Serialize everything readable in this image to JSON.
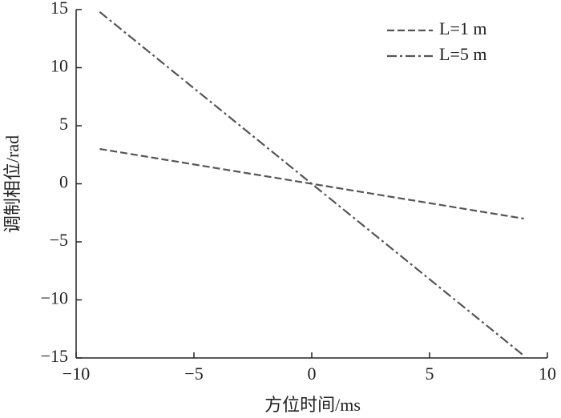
{
  "chart_data": {
    "type": "line",
    "xlabel": "方位时间/ms",
    "ylabel": "调制相位/rad",
    "x": [
      -9,
      0,
      9
    ],
    "series": [
      {
        "name": "L=1 m",
        "color": "#555555",
        "dash": "dashed",
        "values": [
          3,
          0,
          -3
        ]
      },
      {
        "name": "L=5 m",
        "color": "#555555",
        "dash": "dashdot",
        "values": [
          14.8,
          0,
          -14.8
        ]
      }
    ],
    "xlim": [
      -10,
      10
    ],
    "xticks": [
      {
        "value": -10,
        "label": "−10"
      },
      {
        "value": -5,
        "label": "−5"
      },
      0,
      5,
      10
    ],
    "ylim": [
      -15,
      15
    ],
    "yticks": [
      {
        "value": -15,
        "label": "−15"
      },
      {
        "value": -10,
        "label": "−10"
      },
      {
        "value": -5,
        "label": "−5"
      },
      0,
      5,
      10,
      15
    ],
    "legend": "upper-right"
  }
}
